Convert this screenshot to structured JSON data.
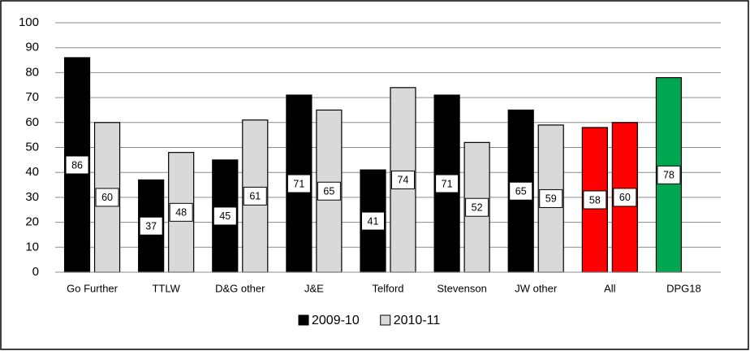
{
  "chart_data": {
    "type": "bar",
    "categories": [
      "Go Further",
      "TTLW",
      "D&G other",
      "J&E",
      "Telford",
      "Stevenson",
      "JW other",
      "All",
      "DPG18"
    ],
    "series": [
      {
        "name": "2009-10",
        "color": "#000000",
        "values": [
          86,
          37,
          45,
          71,
          41,
          71,
          65,
          58,
          78
        ],
        "colors": [
          "#000000",
          "#000000",
          "#000000",
          "#000000",
          "#000000",
          "#000000",
          "#000000",
          "#ff0000",
          "#00a650"
        ]
      },
      {
        "name": "2010-11",
        "color": "#d9d9d9",
        "values": [
          60,
          48,
          61,
          65,
          74,
          52,
          59,
          60,
          null
        ],
        "colors": [
          "#d9d9d9",
          "#d9d9d9",
          "#d9d9d9",
          "#d9d9d9",
          "#d9d9d9",
          "#d9d9d9",
          "#d9d9d9",
          "#ff0000",
          null
        ]
      }
    ],
    "ylim": [
      0,
      100
    ],
    "yticks": [
      0,
      10,
      20,
      30,
      40,
      50,
      60,
      70,
      80,
      90,
      100
    ],
    "grid": true,
    "legend": "bottom"
  }
}
